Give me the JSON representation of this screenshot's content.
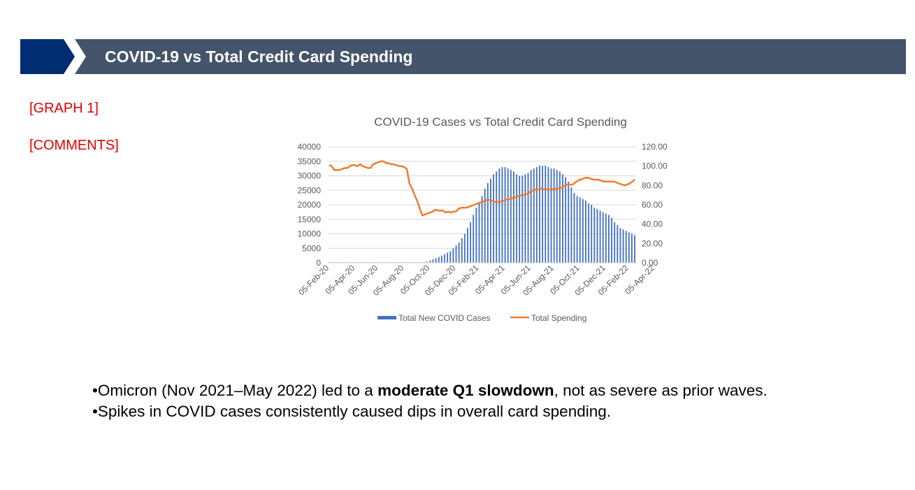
{
  "header": {
    "title": "COVID-19 vs Total Credit Card Spending",
    "colors": {
      "chevron": "#002d72",
      "bar": "#44546a"
    }
  },
  "labels": {
    "graph": "[GRAPH 1]",
    "comments": "[COMMENTS]"
  },
  "chart_data": {
    "type": "bar",
    "title": "COVID-19 Cases vs Total Credit Card Spending",
    "x_start": "05-Feb-20",
    "x_interval": "week",
    "tick_labels": [
      "05-Feb-20",
      "05-Apr-20",
      "05-Jun-20",
      "05-Aug-20",
      "05-Oct-20",
      "05-Dec-20",
      "05-Feb-21",
      "05-Apr-21",
      "05-Jun-21",
      "05-Aug-21",
      "05-Oct-21",
      "05-Dec-21",
      "05-Feb-22",
      "05-Apr-22"
    ],
    "y_left": {
      "ylim": [
        0,
        40000
      ],
      "ticks": [
        "0",
        "5000",
        "10000",
        "15000",
        "20000",
        "25000",
        "30000",
        "35000",
        "40000"
      ]
    },
    "y_right": {
      "ylim": [
        0,
        120
      ],
      "ticks": [
        "0.00",
        "20.00",
        "40.00",
        "60.00",
        "80.00",
        "100.00",
        "120.00"
      ]
    },
    "grid": true,
    "legend_position": "bottom",
    "series": [
      {
        "name": "Total New COVID Cases",
        "type": "bar",
        "axis": "left",
        "color": "#4472c4",
        "values": [
          200,
          200,
          200,
          200,
          200,
          200,
          200,
          200,
          200,
          200,
          200,
          200,
          200,
          200,
          200,
          200,
          200,
          200,
          200,
          200,
          200,
          200,
          200,
          200,
          200,
          200,
          200,
          200,
          200,
          200,
          200,
          200,
          200,
          200,
          400,
          800,
          1200,
          1600,
          2000,
          2500,
          3000,
          3500,
          4000,
          5000,
          6000,
          7000,
          8500,
          10000,
          12000,
          14000,
          16500,
          19000,
          21000,
          23000,
          25500,
          27500,
          29000,
          30500,
          31500,
          32500,
          33000,
          33000,
          32500,
          32000,
          31500,
          30500,
          30000,
          30000,
          30500,
          31000,
          32000,
          32500,
          33000,
          33500,
          33500,
          33500,
          33000,
          32500,
          32500,
          32000,
          31500,
          30500,
          29500,
          28000,
          26000,
          24000,
          23000,
          22500,
          22000,
          21500,
          20500,
          20000,
          19000,
          18500,
          18000,
          17500,
          17000,
          16500,
          15500,
          14000,
          13000,
          12000,
          11500,
          11000,
          10500,
          10000,
          9500
        ]
      },
      {
        "name": "Total Spending",
        "type": "line",
        "axis": "right",
        "color": "#ed7d31",
        "values": [
          101,
          100,
          96,
          96,
          96,
          97,
          98,
          98,
          100,
          101,
          101,
          100,
          102,
          100,
          99,
          98,
          98,
          102,
          103,
          104,
          105,
          105,
          103,
          103,
          102,
          102,
          101,
          100,
          100,
          99,
          97,
          82,
          77,
          70,
          64,
          56,
          49,
          50,
          51,
          52,
          53,
          55,
          54,
          54,
          54,
          52,
          53,
          52,
          53,
          53,
          56,
          57,
          57,
          57,
          58,
          59,
          60,
          61,
          62,
          63,
          64,
          65,
          65,
          64,
          63,
          63,
          63,
          64,
          65,
          66,
          66,
          67,
          68,
          69,
          70,
          70,
          71,
          72,
          74,
          75,
          76,
          76,
          77,
          76,
          76,
          76,
          76,
          76,
          77,
          77,
          78,
          80,
          81,
          81,
          81,
          83,
          85,
          86,
          87,
          88,
          88,
          87,
          86,
          86,
          86,
          85,
          84,
          84,
          84,
          84,
          84,
          83,
          82,
          81,
          80,
          81,
          82,
          84,
          86
        ]
      }
    ]
  },
  "comments": {
    "bullet1": {
      "prefix": "•Omicron (Nov 2021–May 2022) led to a ",
      "bold": "moderate Q1 slowdown",
      "suffix": ", not as severe as prior waves."
    },
    "bullet2": "•Spikes in COVID cases consistently caused dips in overall card spending."
  }
}
